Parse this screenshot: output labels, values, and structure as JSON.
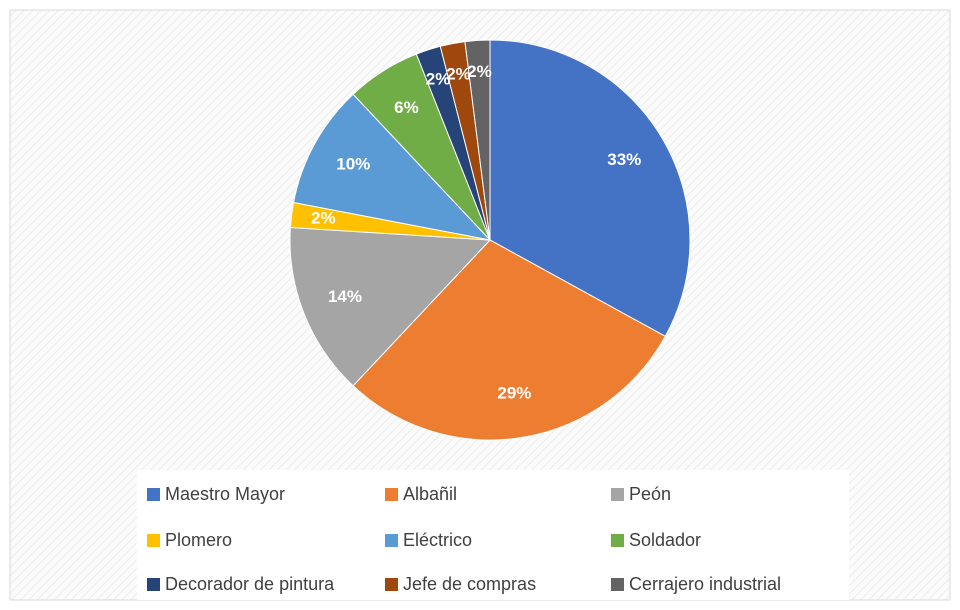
{
  "chart_data": {
    "type": "pie",
    "categories": [
      "Maestro Mayor",
      "Albañil",
      "Peón",
      "Plomero",
      "Eléctrico",
      "Soldador",
      "Decorador de pintura",
      "Jefe de compras",
      "Cerrajero industrial"
    ],
    "values": [
      33,
      29,
      14,
      2,
      10,
      6,
      2,
      2,
      2
    ],
    "value_labels": [
      "33%",
      "29%",
      "14%",
      "2%",
      "10%",
      "6%",
      "2%",
      "2%",
      "2%"
    ],
    "colors": [
      "#4472c4",
      "#ed7d31",
      "#a5a5a5",
      "#ffc000",
      "#5b9bd5",
      "#70ad47",
      "#264478",
      "#9e480e",
      "#636363"
    ],
    "legend": "bottom"
  }
}
